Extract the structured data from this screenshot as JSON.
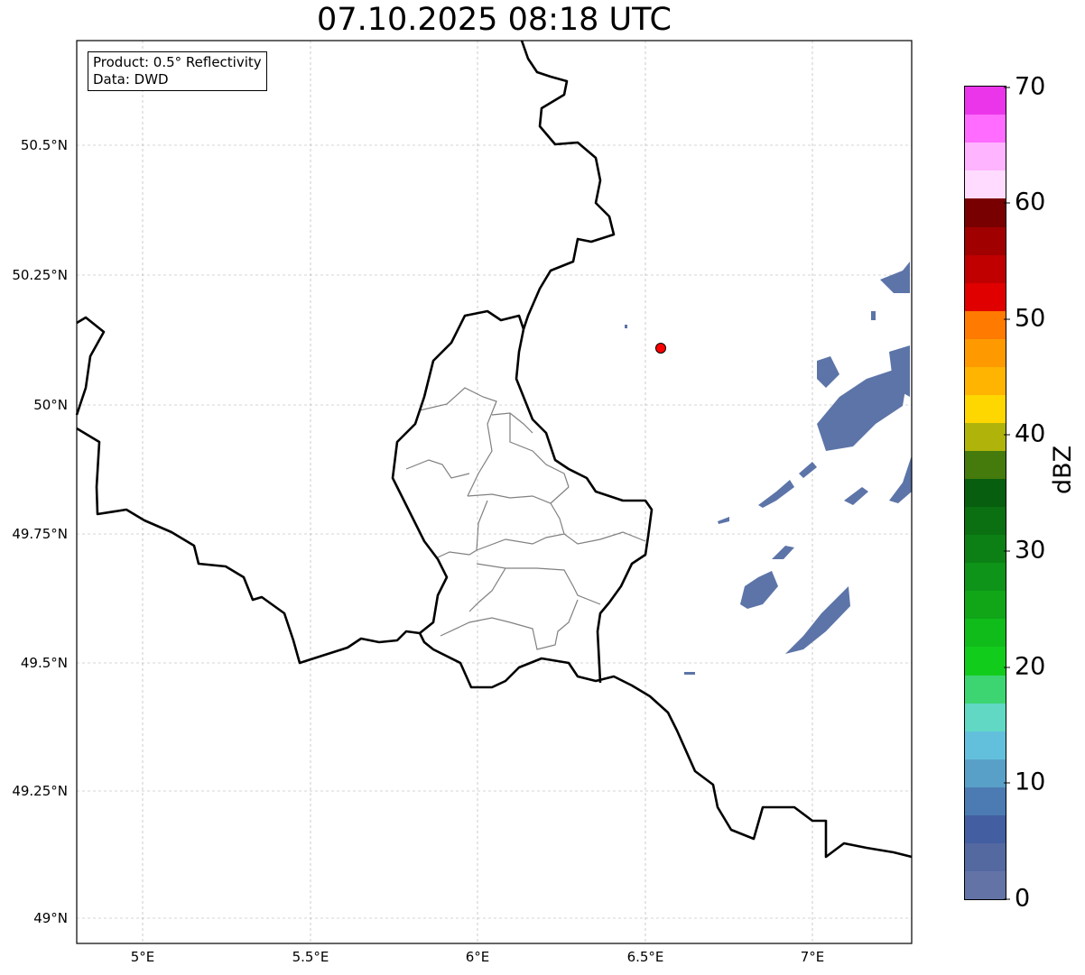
{
  "title": "07.10.2025 08:18 UTC",
  "legend": {
    "product": "Product: 0.5° Reflectivity",
    "data": "Data: DWD"
  },
  "axes": {
    "y_ticks": [
      "50.5°N",
      "50.25°N",
      "50°N",
      "49.75°N",
      "49.5°N",
      "49.25°N",
      "49°N"
    ],
    "x_ticks": [
      "5°E",
      "5.5°E",
      "6°E",
      "6.5°E",
      "7°E"
    ]
  },
  "colorbar": {
    "label": "dBZ",
    "min": 0,
    "max": 70,
    "step": 2.5,
    "ticks": [
      "0",
      "10",
      "20",
      "30",
      "40",
      "50",
      "60",
      "70"
    ],
    "colors": [
      "#6373a6",
      "#5469a0",
      "#435fa2",
      "#4b7bb2",
      "#59a0c8",
      "#62c0dc",
      "#60d8c4",
      "#3dd572",
      "#12cc1c",
      "#10bc1a",
      "#10a618",
      "#0e9418",
      "#0c8014",
      "#0a7012",
      "#075e0e",
      "#457a0c",
      "#afb30a",
      "#fed600",
      "#feb400",
      "#fe9a00",
      "#fe7a00",
      "#e00000",
      "#c00000",
      "#a00000",
      "#780000",
      "#ffdcff",
      "#ffb4ff",
      "#ff6cff",
      "#ea35ea"
    ]
  },
  "marker": {
    "color": "#ff0000",
    "lon": 6.55,
    "lat": 50.11
  },
  "echo_color": "#5c74a8"
}
